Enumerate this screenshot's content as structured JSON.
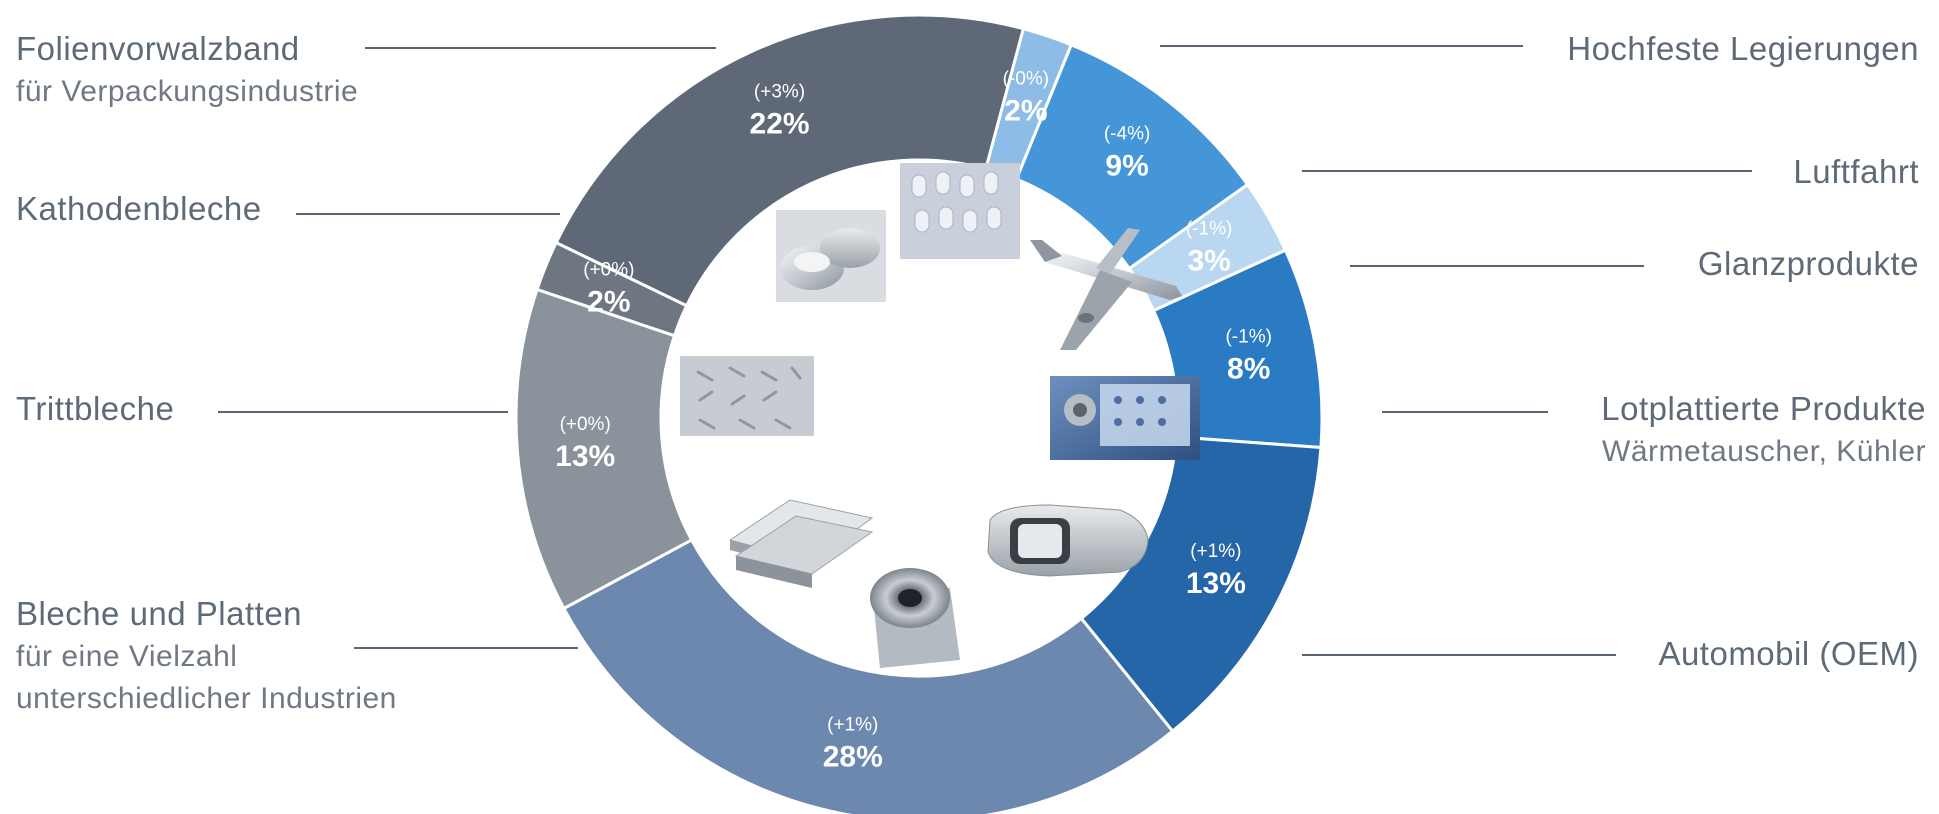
{
  "chart_data": {
    "type": "pie",
    "variant": "donut",
    "slices": [
      {
        "label": "Hochfeste Legierungen",
        "sublabel": "",
        "value": 2,
        "change": "(-0%)",
        "color": "#8dbde6"
      },
      {
        "label": "Luftfahrt",
        "sublabel": "",
        "value": 9,
        "change": "(-4%)",
        "color": "#4596d8"
      },
      {
        "label": "Glanzprodukte",
        "sublabel": "",
        "value": 3,
        "change": "(-1%)",
        "color": "#b9d7f0"
      },
      {
        "label": "Lotplattierte Produkte",
        "sublabel": "Wärmetauscher, Kühler",
        "value": 8,
        "change": "(-1%)",
        "color": "#2a7bc4"
      },
      {
        "label": "Automobil (OEM)",
        "sublabel": "",
        "value": 13,
        "change": "(+1%)",
        "color": "#2566a8"
      },
      {
        "label": "Bleche und Platten",
        "sublabel": "für eine Vielzahl\nunterschiedlicher Industrien",
        "value": 28,
        "change": "(+1%)",
        "color": "#6d88af"
      },
      {
        "label": "Trittbleche",
        "sublabel": "",
        "value": 13,
        "change": "(+0%)",
        "color": "#8a929c"
      },
      {
        "label": "Kathodenbleche",
        "sublabel": "",
        "value": 2,
        "change": "(+0%)",
        "color": "#6e7681"
      },
      {
        "label": "Folienvorwalzband",
        "sublabel": "für Verpackungsindustrie",
        "value": 22,
        "change": "(+3%)",
        "color": "#5f6876"
      }
    ],
    "value_suffix": "%"
  },
  "images": [
    {
      "name": "foil-rolls-photo"
    },
    {
      "name": "blister-pack-photo"
    },
    {
      "name": "airplane-photo"
    },
    {
      "name": "heat-exchanger-photo"
    },
    {
      "name": "car-photo"
    },
    {
      "name": "aluminium-coil-photo"
    },
    {
      "name": "sheet-plates-photo"
    },
    {
      "name": "tread-plate-photo"
    }
  ]
}
